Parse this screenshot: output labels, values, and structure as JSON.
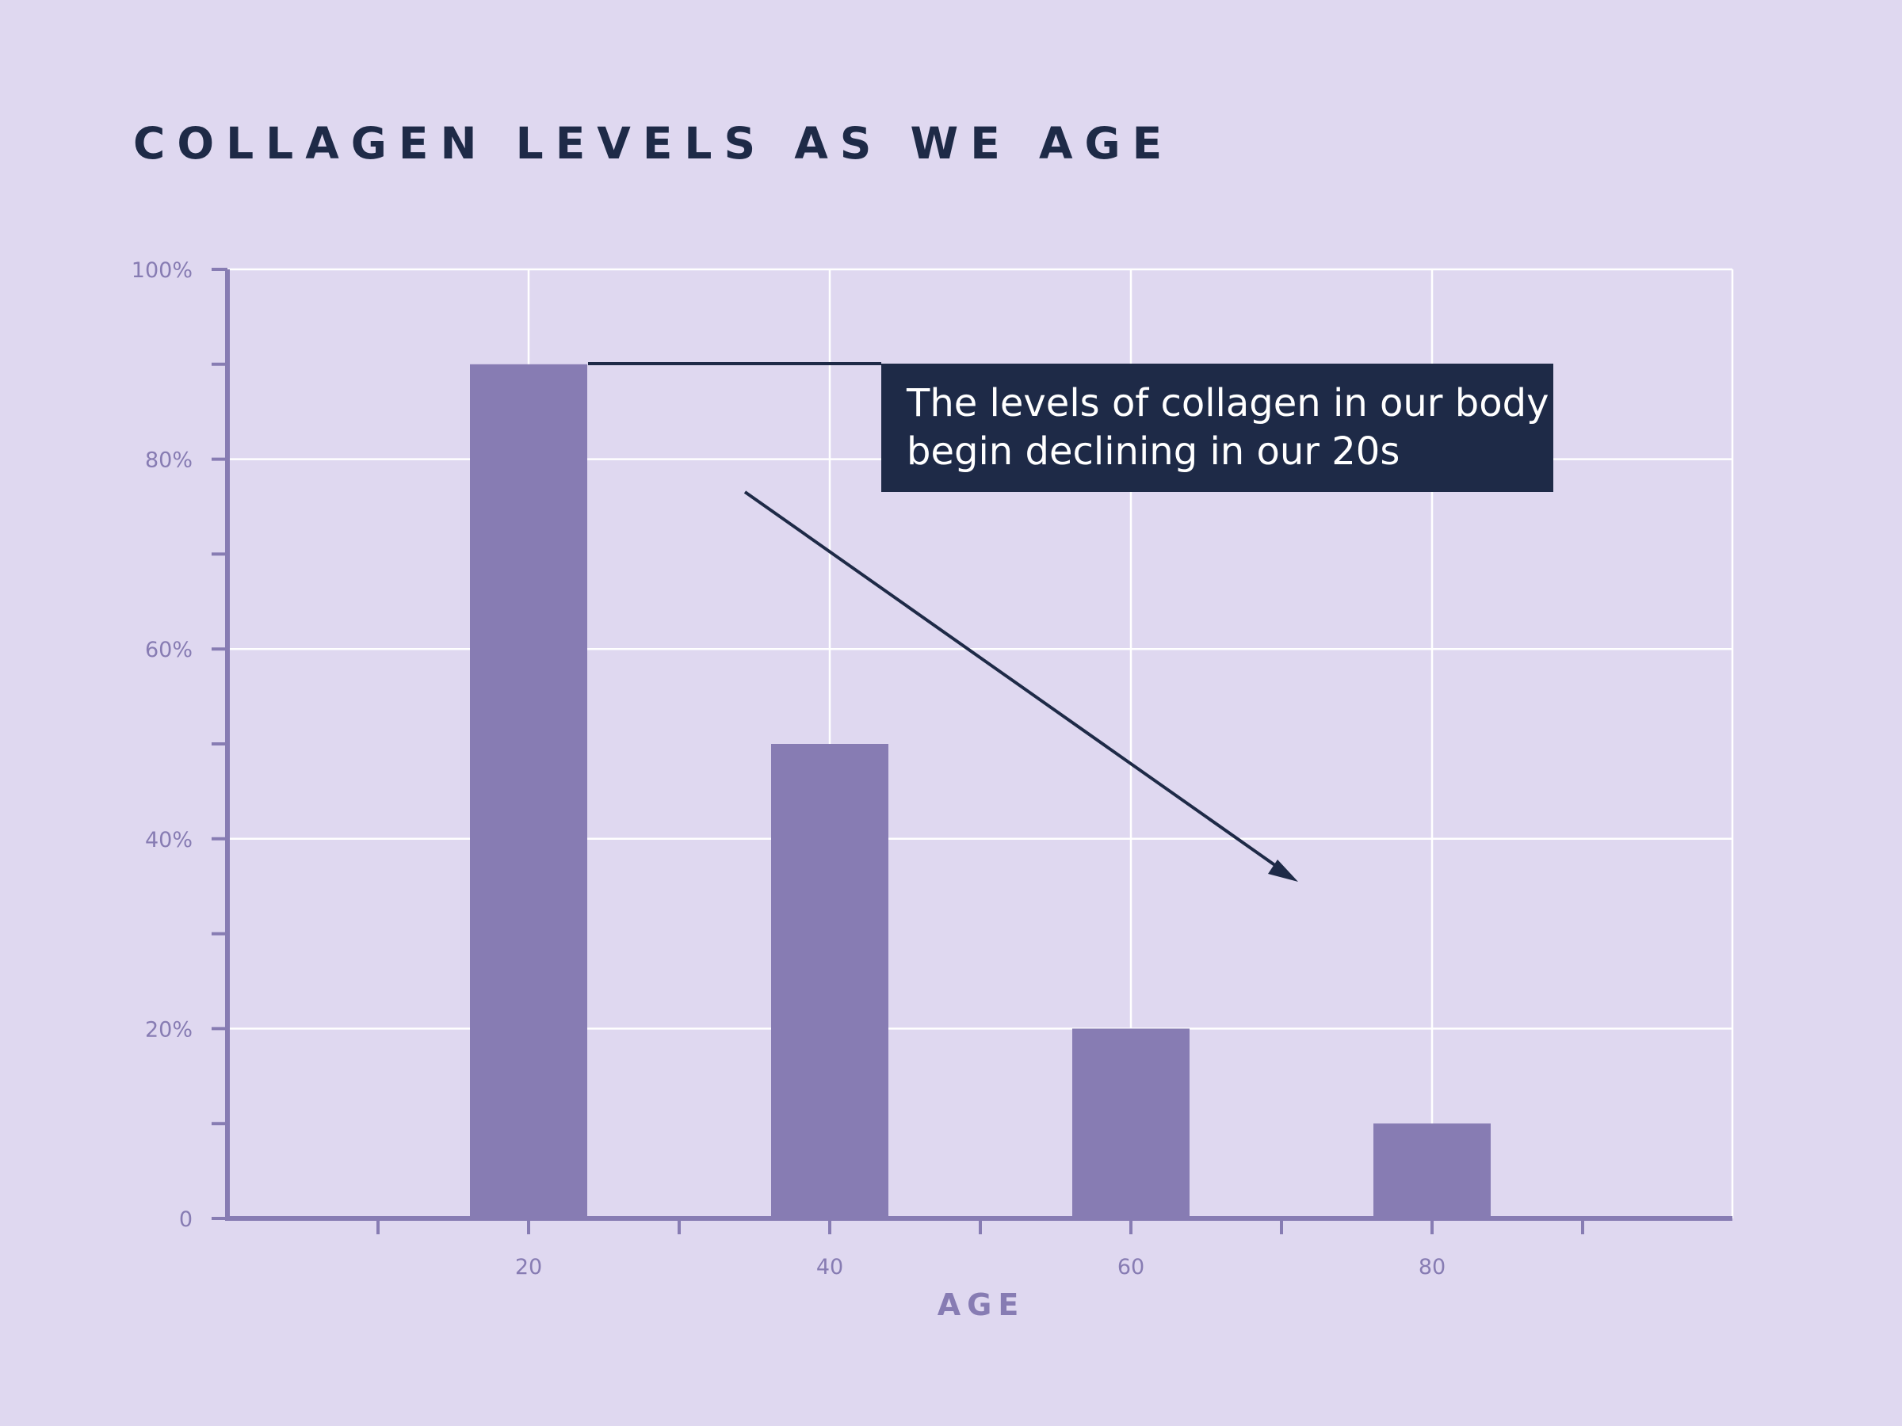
{
  "colors": {
    "background": "#dfd8f0",
    "bar": "#877cb3",
    "axis": "#877cb3",
    "grid": "#ffffff",
    "title": "#1e2a47",
    "callout_bg": "#1e2a47",
    "callout_text": "#ffffff",
    "arrow": "#1e2a47"
  },
  "chart_data": {
    "type": "bar",
    "title": "COLLAGEN LEVELS AS WE AGE",
    "xlabel": "AGE",
    "ylabel": "",
    "x": [
      20,
      40,
      60,
      80
    ],
    "values": [
      90,
      50,
      20,
      10
    ],
    "xlim": [
      0,
      100
    ],
    "ylim": [
      0,
      100
    ],
    "x_ticks": [
      "20",
      "40",
      "60",
      "80"
    ],
    "y_ticks": [
      "0",
      "20%",
      "40%",
      "60%",
      "80%",
      "100%"
    ],
    "grid": true,
    "annotation": {
      "lines": [
        "The levels of collagen in our body",
        "begin declining in our 20s"
      ],
      "arrow": "downward trend"
    }
  }
}
